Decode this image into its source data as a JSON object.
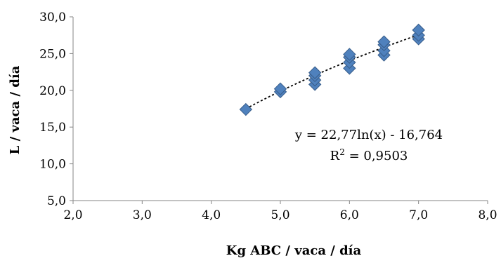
{
  "chart_data": {
    "type": "scatter",
    "xlabel": "Kg ABC / vaca / día",
    "ylabel": "L / vaca / día",
    "xlim": [
      2.0,
      8.0
    ],
    "ylim": [
      5.0,
      30.0
    ],
    "x_ticks": [
      "2,0",
      "3,0",
      "4,0",
      "5,0",
      "6,0",
      "7,0",
      "8,0"
    ],
    "y_ticks": [
      "5,0",
      "10,0",
      "15,0",
      "20,0",
      "25,0",
      "30,0"
    ],
    "grid": false,
    "series": [
      {
        "marker": "diamond",
        "color": "#4f81bd",
        "points": [
          {
            "x": 4.5,
            "y": 17.4
          },
          {
            "x": 5.0,
            "y": 19.8
          },
          {
            "x": 5.0,
            "y": 20.2
          },
          {
            "x": 5.5,
            "y": 20.8
          },
          {
            "x": 5.5,
            "y": 21.4
          },
          {
            "x": 5.5,
            "y": 22.0
          },
          {
            "x": 5.5,
            "y": 22.4
          },
          {
            "x": 6.0,
            "y": 23.0
          },
          {
            "x": 6.0,
            "y": 23.8
          },
          {
            "x": 6.0,
            "y": 24.5
          },
          {
            "x": 6.0,
            "y": 24.9
          },
          {
            "x": 6.5,
            "y": 24.8
          },
          {
            "x": 6.5,
            "y": 25.4
          },
          {
            "x": 6.5,
            "y": 26.2
          },
          {
            "x": 6.5,
            "y": 26.6
          },
          {
            "x": 7.0,
            "y": 27.0
          },
          {
            "x": 7.0,
            "y": 27.5
          },
          {
            "x": 7.0,
            "y": 28.2
          }
        ]
      }
    ],
    "trendline": {
      "type": "logarithmic",
      "a": 22.77,
      "b": -16.764,
      "x_range": [
        4.5,
        7.0
      ],
      "style": "dotted",
      "color": "#000000",
      "equation": "y = 22,77ln(x) - 16,764",
      "r2_prefix": "R",
      "r2_sup": "2",
      "r2_value": " = 0,9503"
    }
  }
}
